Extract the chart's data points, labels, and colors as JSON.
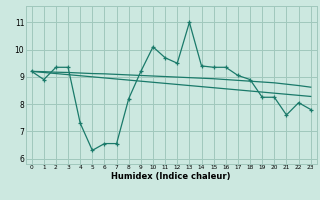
{
  "xlabel": "Humidex (Indice chaleur)",
  "x": [
    0,
    1,
    2,
    3,
    4,
    5,
    6,
    7,
    8,
    9,
    10,
    11,
    12,
    13,
    14,
    15,
    16,
    17,
    18,
    19,
    20,
    21,
    22,
    23
  ],
  "y_line": [
    9.2,
    8.9,
    9.35,
    9.35,
    7.3,
    6.3,
    6.55,
    6.55,
    8.2,
    9.2,
    10.1,
    9.7,
    9.5,
    11.0,
    9.4,
    9.35,
    9.35,
    9.05,
    8.9,
    8.25,
    8.25,
    7.6,
    8.05,
    7.8
  ],
  "y_trend1": [
    9.2,
    9.19,
    9.17,
    9.16,
    9.14,
    9.12,
    9.11,
    9.09,
    9.07,
    9.05,
    9.03,
    9.01,
    8.99,
    8.97,
    8.95,
    8.93,
    8.9,
    8.87,
    8.84,
    8.81,
    8.78,
    8.73,
    8.68,
    8.62
  ],
  "y_trend2": [
    9.2,
    9.16,
    9.12,
    9.08,
    9.04,
    9.0,
    8.96,
    8.92,
    8.88,
    8.84,
    8.8,
    8.76,
    8.72,
    8.68,
    8.64,
    8.6,
    8.56,
    8.52,
    8.48,
    8.44,
    8.4,
    8.36,
    8.32,
    8.28
  ],
  "line_color": "#1a7a6a",
  "trend_color": "#1a7a6a",
  "bg_color": "#cce8e0",
  "grid_color": "#a0c8bc",
  "ylim": [
    5.8,
    11.6
  ],
  "yticks": [
    6,
    7,
    8,
    9,
    10,
    11
  ],
  "xlim": [
    -0.5,
    23.5
  ],
  "xticks": [
    0,
    1,
    2,
    3,
    4,
    5,
    6,
    7,
    8,
    9,
    10,
    11,
    12,
    13,
    14,
    15,
    16,
    17,
    18,
    19,
    20,
    21,
    22,
    23
  ]
}
